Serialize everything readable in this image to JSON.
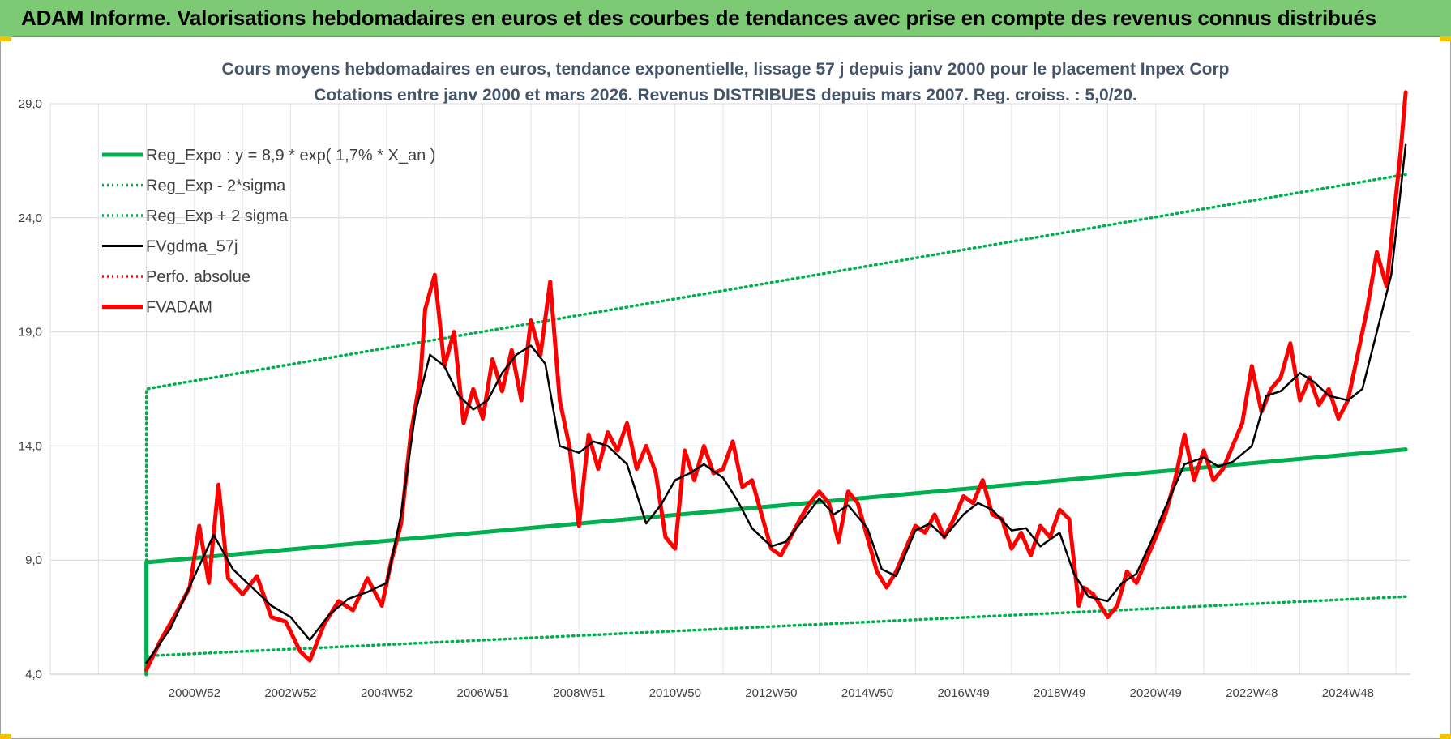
{
  "banner": {
    "title": "ADAM Informe. Valorisations hebdomadaires en euros et des courbes de tendances avec prise en compte des revenus connus distribués"
  },
  "chart_data": {
    "type": "line",
    "title": "Cours moyens hebdomadaires en euros, tendance exponentielle, lissage 57 j depuis janv 2000  pour le placement Inpex Corp",
    "subtitle": "Cotations entre janv 2000 et mars 2026. Revenus DISTRIBUES depuis mars 2007. Reg. croiss. : 5,0/20.",
    "xlabel": "",
    "ylabel": "",
    "ylim": [
      4.0,
      29.0
    ],
    "xlim": [
      1998.0,
      2026.3
    ],
    "y_ticks": [
      "4,0",
      "9,0",
      "14,0",
      "19,0",
      "24,0",
      "29,0"
    ],
    "x_ticks": [
      {
        "label": "2000W52",
        "x": 2001.0
      },
      {
        "label": "2002W52",
        "x": 2003.0
      },
      {
        "label": "2004W52",
        "x": 2005.0
      },
      {
        "label": "2006W51",
        "x": 2007.0
      },
      {
        "label": "2008W51",
        "x": 2009.0
      },
      {
        "label": "2010W50",
        "x": 2011.0
      },
      {
        "label": "2012W50",
        "x": 2013.0
      },
      {
        "label": "2014W50",
        "x": 2015.0
      },
      {
        "label": "2016W49",
        "x": 2017.0
      },
      {
        "label": "2018W49",
        "x": 2019.0
      },
      {
        "label": "2020W49",
        "x": 2021.0
      },
      {
        "label": "2022W48",
        "x": 2023.0
      },
      {
        "label": "2024W48",
        "x": 2025.0
      }
    ],
    "grid": true,
    "legend_position": "top-left",
    "colors": {
      "reg": "#00b050",
      "band": "#00b050",
      "smooth": "#000000",
      "perf": "#ff0000",
      "price": "#ff0000"
    },
    "series": [
      {
        "name": "Reg_Expo : y = 8,9 * exp( 1,7% *  X_an )",
        "style": "solid-thick",
        "color": "#00b050",
        "x": [
          2000.0,
          2000.0,
          2026.2
        ],
        "y": [
          4.0,
          8.9,
          13.85
        ]
      },
      {
        "name": "Reg_Exp - 2*sigma",
        "style": "dotted",
        "color": "#00b050",
        "x": [
          2000.0,
          2026.2
        ],
        "y": [
          4.8,
          7.4
        ]
      },
      {
        "name": "Reg_Exp + 2 sigma",
        "style": "dotted",
        "color": "#00b050",
        "x": [
          2000.0,
          2000.0,
          2026.2
        ],
        "y": [
          4.8,
          16.5,
          25.9
        ]
      },
      {
        "name": "FVgdma_57j",
        "style": "solid",
        "color": "#000000",
        "x": [
          2000.0,
          2000.5,
          2001.0,
          2001.4,
          2001.8,
          2002.2,
          2002.6,
          2003.0,
          2003.4,
          2003.8,
          2004.2,
          2004.6,
          2005.0,
          2005.3,
          2005.6,
          2005.9,
          2006.2,
          2006.5,
          2006.8,
          2007.1,
          2007.4,
          2007.7,
          2008.0,
          2008.3,
          2008.6,
          2009.0,
          2009.3,
          2009.6,
          2010.0,
          2010.4,
          2010.7,
          2011.0,
          2011.3,
          2011.6,
          2012.0,
          2012.3,
          2012.6,
          2013.0,
          2013.3,
          2013.6,
          2014.0,
          2014.3,
          2014.6,
          2015.0,
          2015.3,
          2015.6,
          2016.0,
          2016.3,
          2016.6,
          2017.0,
          2017.3,
          2017.6,
          2018.0,
          2018.3,
          2018.6,
          2019.0,
          2019.3,
          2019.6,
          2020.0,
          2020.3,
          2020.6,
          2020.9,
          2021.2,
          2021.6,
          2022.0,
          2022.3,
          2022.6,
          2023.0,
          2023.3,
          2023.6,
          2024.0,
          2024.3,
          2024.6,
          2025.0,
          2025.3,
          2025.6,
          2025.9,
          2026.2
        ],
        "y": [
          4.5,
          6.0,
          8.3,
          10.1,
          8.6,
          7.8,
          7.0,
          6.5,
          5.5,
          6.6,
          7.3,
          7.6,
          8.0,
          11.0,
          15.5,
          18.0,
          17.5,
          16.2,
          15.6,
          16.0,
          17.2,
          18.0,
          18.4,
          17.6,
          14.0,
          13.7,
          14.2,
          14.0,
          13.2,
          10.6,
          11.4,
          12.5,
          12.8,
          13.2,
          12.6,
          11.6,
          10.4,
          9.6,
          9.8,
          10.6,
          11.7,
          11.0,
          11.4,
          10.4,
          8.6,
          8.3,
          10.3,
          10.6,
          10.0,
          11.0,
          11.5,
          11.2,
          10.3,
          10.4,
          9.6,
          10.2,
          8.4,
          7.4,
          7.2,
          8.0,
          8.4,
          9.8,
          11.3,
          13.2,
          13.5,
          13.1,
          13.3,
          14.0,
          16.2,
          16.4,
          17.2,
          16.8,
          16.2,
          16.0,
          16.5,
          19.0,
          21.5,
          27.2
        ]
      },
      {
        "name": "Perfo. absolue",
        "style": "dotted",
        "color": "#ff0000",
        "x": [],
        "y": []
      },
      {
        "name": "FVADAM",
        "style": "solid-thick",
        "color": "#ff0000",
        "x": [
          2000.0,
          2000.3,
          2000.6,
          2000.9,
          2001.1,
          2001.3,
          2001.5,
          2001.7,
          2002.0,
          2002.3,
          2002.6,
          2002.9,
          2003.2,
          2003.4,
          2003.7,
          2004.0,
          2004.3,
          2004.6,
          2004.9,
          2005.1,
          2005.3,
          2005.5,
          2005.7,
          2005.8,
          2006.0,
          2006.2,
          2006.4,
          2006.6,
          2006.8,
          2007.0,
          2007.2,
          2007.4,
          2007.6,
          2007.8,
          2008.0,
          2008.2,
          2008.4,
          2008.6,
          2008.8,
          2009.0,
          2009.2,
          2009.4,
          2009.6,
          2009.8,
          2010.0,
          2010.2,
          2010.4,
          2010.6,
          2010.8,
          2011.0,
          2011.2,
          2011.4,
          2011.6,
          2011.8,
          2012.0,
          2012.2,
          2012.4,
          2012.6,
          2012.8,
          2013.0,
          2013.2,
          2013.4,
          2013.6,
          2013.8,
          2014.0,
          2014.2,
          2014.4,
          2014.6,
          2014.8,
          2015.0,
          2015.2,
          2015.4,
          2015.6,
          2015.8,
          2016.0,
          2016.2,
          2016.4,
          2016.6,
          2016.8,
          2017.0,
          2017.2,
          2017.4,
          2017.6,
          2017.8,
          2018.0,
          2018.2,
          2018.4,
          2018.6,
          2018.8,
          2019.0,
          2019.2,
          2019.4,
          2019.5,
          2019.7,
          2020.0,
          2020.2,
          2020.4,
          2020.6,
          2020.8,
          2021.0,
          2021.2,
          2021.4,
          2021.6,
          2021.8,
          2022.0,
          2022.2,
          2022.4,
          2022.6,
          2022.8,
          2023.0,
          2023.2,
          2023.4,
          2023.6,
          2023.8,
          2024.0,
          2024.2,
          2024.4,
          2024.6,
          2024.8,
          2025.0,
          2025.2,
          2025.4,
          2025.6,
          2025.8,
          2026.0,
          2026.1,
          2026.2
        ],
        "y": [
          4.2,
          5.5,
          6.6,
          7.8,
          10.5,
          8.0,
          12.3,
          8.2,
          7.5,
          8.3,
          6.5,
          6.3,
          5.0,
          4.6,
          6.2,
          7.2,
          6.8,
          8.2,
          7.0,
          9.0,
          10.6,
          14.5,
          17.0,
          20.0,
          21.5,
          17.5,
          19.0,
          15.0,
          16.5,
          15.2,
          17.8,
          16.4,
          18.2,
          16.0,
          19.5,
          18.0,
          21.2,
          16.0,
          14.0,
          10.5,
          14.5,
          13.0,
          14.6,
          13.8,
          15.0,
          13.0,
          14.0,
          12.8,
          10.0,
          9.5,
          13.8,
          12.5,
          14.0,
          12.8,
          13.0,
          14.2,
          12.2,
          12.5,
          11.0,
          9.5,
          9.2,
          10.0,
          10.8,
          11.5,
          12.0,
          11.5,
          9.8,
          12.0,
          11.5,
          10.0,
          8.5,
          7.8,
          8.5,
          9.5,
          10.5,
          10.2,
          11.0,
          10.0,
          10.8,
          11.8,
          11.5,
          12.5,
          11.0,
          10.8,
          9.5,
          10.2,
          9.2,
          10.5,
          10.0,
          11.2,
          10.8,
          7.0,
          7.8,
          7.5,
          6.5,
          7.0,
          8.5,
          8.0,
          9.0,
          10.0,
          11.0,
          12.5,
          14.5,
          12.5,
          13.8,
          12.5,
          13.0,
          14.0,
          15.0,
          17.5,
          15.5,
          16.5,
          17.0,
          18.5,
          16.0,
          17.0,
          15.8,
          16.5,
          15.2,
          16.0,
          18.0,
          20.0,
          22.5,
          21.0,
          25.0,
          27.0,
          29.5
        ]
      }
    ]
  }
}
